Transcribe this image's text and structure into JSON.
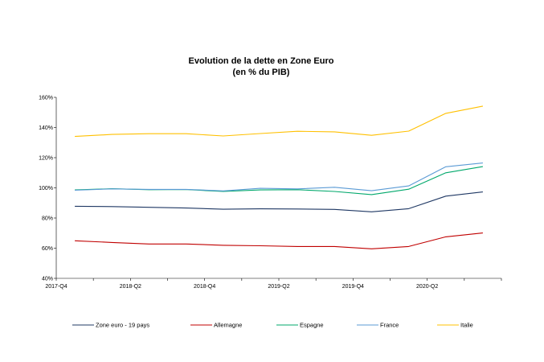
{
  "chart_data": {
    "type": "line",
    "title": "Evolution de la dette en Zone Euro",
    "subtitle": "(en % du PIB)",
    "xlabel": "",
    "ylabel": "",
    "ylim": [
      40,
      160
    ],
    "ytick_step": 20,
    "y_tick_labels": [
      "40%",
      "60%",
      "80%",
      "100%",
      "120%",
      "140%",
      "160%"
    ],
    "x": [
      "2017-Q4",
      "2018-Q1",
      "2018-Q2",
      "2018-Q3",
      "2018-Q4",
      "2019-Q1",
      "2019-Q2",
      "2019-Q3",
      "2019-Q4",
      "2020-Q1",
      "2020-Q2",
      "2020-Q3"
    ],
    "x_tick_labels": [
      "2017-Q4",
      "",
      "2018-Q2",
      "",
      "2018-Q4",
      "",
      "2019-Q2",
      "",
      "2019-Q4",
      "",
      "2020-Q2",
      ""
    ],
    "grid": false,
    "legend_position": "bottom",
    "series": [
      {
        "name": "Zone euro - 19 pays",
        "color": "#1f3864",
        "values": [
          87.8,
          87.6,
          87.1,
          86.6,
          85.8,
          86.1,
          86.0,
          85.7,
          84.1,
          86.2,
          94.5,
          97.3
        ]
      },
      {
        "name": "Allemagne",
        "color": "#c00000",
        "values": [
          64.9,
          63.8,
          62.8,
          62.8,
          61.9,
          61.6,
          61.1,
          61.1,
          59.6,
          61.1,
          67.5,
          70.1
        ]
      },
      {
        "name": "Espagne",
        "color": "#00a86b",
        "values": [
          98.6,
          99.4,
          98.8,
          98.9,
          97.6,
          98.6,
          98.8,
          97.6,
          95.5,
          99.1,
          110.0,
          114.1
        ]
      },
      {
        "name": "France",
        "color": "#5b9bd5",
        "values": [
          98.4,
          99.3,
          99.0,
          99.0,
          98.0,
          99.7,
          99.3,
          100.4,
          98.1,
          101.3,
          114.0,
          116.5
        ]
      },
      {
        "name": "Italie",
        "color": "#ffc000",
        "values": [
          134.1,
          135.4,
          135.9,
          135.9,
          134.4,
          136.0,
          137.5,
          137.1,
          134.8,
          137.6,
          149.4,
          154.2
        ]
      }
    ]
  }
}
